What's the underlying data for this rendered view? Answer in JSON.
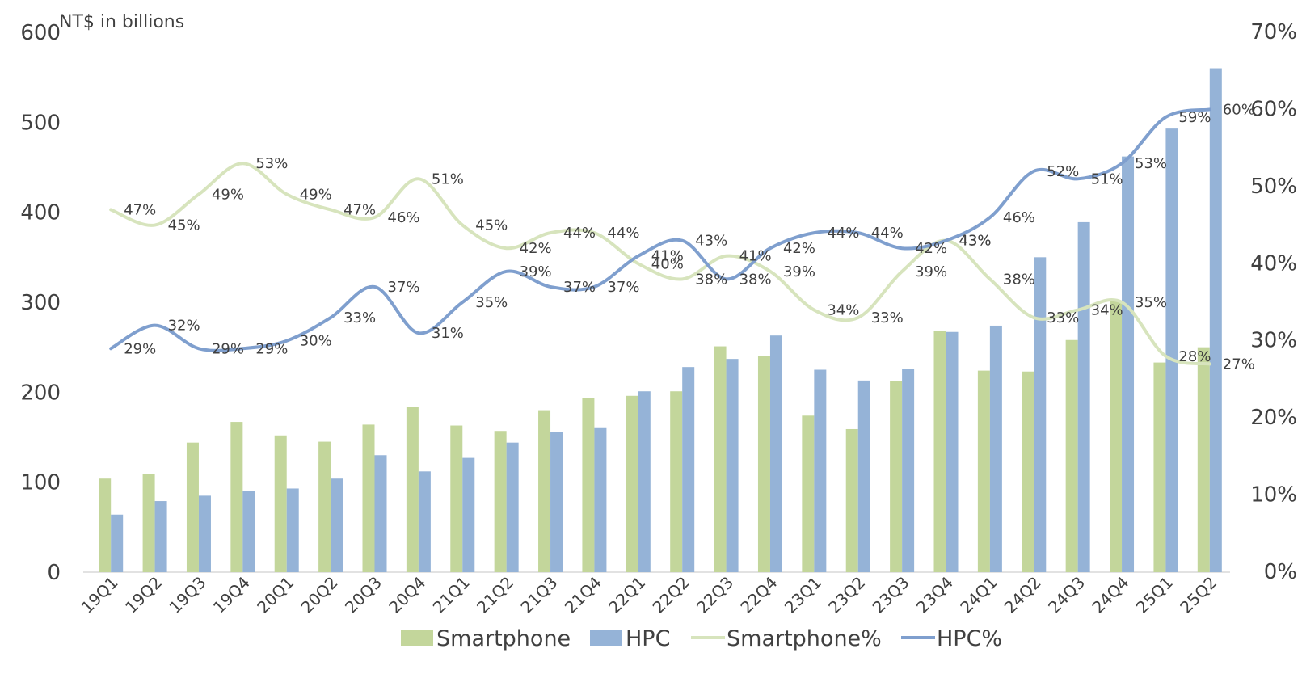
{
  "chart_data": {
    "type": "bar",
    "ylabel": "NT$ in billions",
    "ylim": [
      0,
      600
    ],
    "y2lim": [
      0,
      0.7
    ],
    "y_ticks": [
      "0",
      "100",
      "200",
      "300",
      "400",
      "500",
      "600"
    ],
    "y2_ticks": [
      "0%",
      "10%",
      "20%",
      "30%",
      "40%",
      "50%",
      "60%",
      "70%"
    ],
    "categories": [
      "19Q1",
      "19Q2",
      "19Q3",
      "19Q4",
      "20Q1",
      "20Q2",
      "20Q3",
      "20Q4",
      "21Q1",
      "21Q2",
      "21Q3",
      "21Q4",
      "22Q1",
      "22Q2",
      "22Q3",
      "22Q4",
      "23Q1",
      "23Q2",
      "23Q3",
      "23Q4",
      "24Q1",
      "24Q2",
      "24Q3",
      "24Q4",
      "25Q1",
      "25Q2"
    ],
    "series": [
      {
        "name": "Smartphone",
        "type": "bar",
        "axis": "left",
        "color": "#c3d69b",
        "values": [
          104,
          109,
          144,
          167,
          152,
          145,
          164,
          184,
          163,
          157,
          180,
          194,
          196,
          201,
          251,
          240,
          174,
          159,
          212,
          268,
          224,
          223,
          258,
          302,
          233,
          250
        ]
      },
      {
        "name": "HPC",
        "type": "bar",
        "axis": "left",
        "color": "#95b3d7",
        "values": [
          64,
          79,
          85,
          90,
          93,
          104,
          130,
          112,
          127,
          144,
          156,
          161,
          201,
          228,
          237,
          263,
          225,
          213,
          226,
          267,
          274,
          350,
          389,
          462,
          493,
          560
        ]
      },
      {
        "name": "Smartphone%",
        "type": "line",
        "axis": "right",
        "color": "#d7e4bd",
        "values": [
          0.47,
          0.45,
          0.49,
          0.53,
          0.49,
          0.47,
          0.46,
          0.51,
          0.45,
          0.42,
          0.44,
          0.44,
          0.4,
          0.38,
          0.41,
          0.39,
          0.34,
          0.33,
          0.39,
          0.43,
          0.38,
          0.33,
          0.34,
          0.35,
          0.28,
          0.27
        ],
        "labels": [
          "47%",
          "45%",
          "49%",
          "53%",
          "49%",
          "47%",
          "46%",
          "51%",
          "45%",
          "42%",
          "44%",
          "44%",
          "40%",
          "38%",
          "41%",
          "39%",
          "34%",
          "33%",
          "39%",
          "43%",
          "38%",
          "33%",
          "34%",
          "35%",
          "28%",
          "27%"
        ]
      },
      {
        "name": "HPC%",
        "type": "line",
        "axis": "right",
        "color": "#7f9fce",
        "values": [
          0.29,
          0.32,
          0.29,
          0.29,
          0.3,
          0.33,
          0.37,
          0.31,
          0.35,
          0.39,
          0.37,
          0.37,
          0.41,
          0.43,
          0.38,
          0.42,
          0.44,
          0.44,
          0.42,
          0.43,
          0.46,
          0.52,
          0.51,
          0.53,
          0.59,
          0.6
        ],
        "labels": [
          "29%",
          "32%",
          "29%",
          "29%",
          "30%",
          "33%",
          "37%",
          "31%",
          "35%",
          "39%",
          "37%",
          "37%",
          "41%",
          "43%",
          "38%",
          "42%",
          "44%",
          "44%",
          "42%",
          "43%",
          "46%",
          "52%",
          "51%",
          "53%",
          "59%",
          "60%"
        ]
      }
    ],
    "legend": {
      "position": "bottom"
    },
    "grid": false
  }
}
